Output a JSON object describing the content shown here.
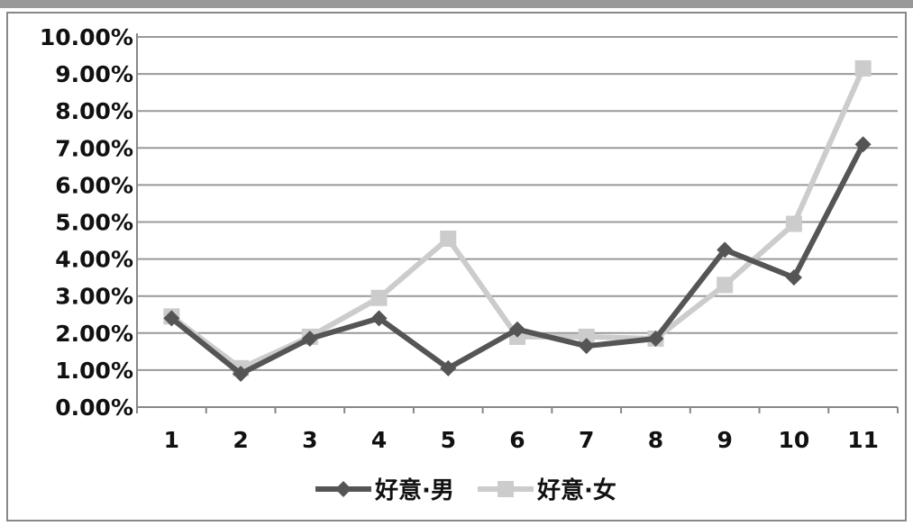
{
  "chart_data": {
    "type": "line",
    "x": [
      "1",
      "2",
      "3",
      "4",
      "5",
      "6",
      "7",
      "8",
      "9",
      "10",
      "11"
    ],
    "y_ticks": [
      "0.00%",
      "1.00%",
      "2.00%",
      "3.00%",
      "4.00%",
      "5.00%",
      "6.00%",
      "7.00%",
      "8.00%",
      "9.00%",
      "10.00%"
    ],
    "ylim": [
      0,
      10
    ],
    "grid": "horizontal",
    "legend": "bottom",
    "series": [
      {
        "name": "好意·男",
        "color": "#555555",
        "marker": "diamond",
        "values": [
          2.4,
          0.9,
          1.85,
          2.4,
          1.05,
          2.1,
          1.65,
          1.85,
          4.25,
          3.5,
          7.1
        ]
      },
      {
        "name": "好意·女",
        "color": "#cccccc",
        "marker": "square",
        "values": [
          2.45,
          1.05,
          1.9,
          2.95,
          4.55,
          1.9,
          1.9,
          1.85,
          3.3,
          4.95,
          9.15
        ]
      }
    ]
  }
}
